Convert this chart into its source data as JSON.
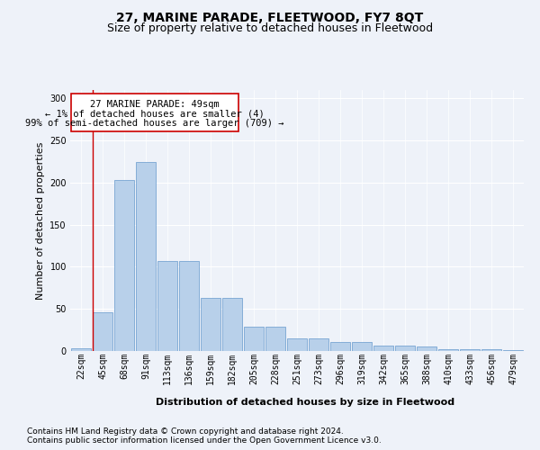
{
  "title": "27, MARINE PARADE, FLEETWOOD, FY7 8QT",
  "subtitle": "Size of property relative to detached houses in Fleetwood",
  "xlabel": "Distribution of detached houses by size in Fleetwood",
  "ylabel": "Number of detached properties",
  "bin_labels": [
    "22sqm",
    "45sqm",
    "68sqm",
    "91sqm",
    "113sqm",
    "136sqm",
    "159sqm",
    "182sqm",
    "205sqm",
    "228sqm",
    "251sqm",
    "273sqm",
    "296sqm",
    "319sqm",
    "342sqm",
    "365sqm",
    "388sqm",
    "410sqm",
    "433sqm",
    "456sqm",
    "479sqm"
  ],
  "bar_values": [
    3,
    46,
    203,
    225,
    107,
    107,
    63,
    63,
    29,
    29,
    15,
    15,
    11,
    11,
    6,
    6,
    5,
    2,
    2,
    2,
    1
  ],
  "bar_color": "#b8d0ea",
  "bar_edgecolor": "#6699cc",
  "ylim": [
    0,
    310
  ],
  "yticks": [
    0,
    50,
    100,
    150,
    200,
    250,
    300
  ],
  "annotation_line1": "27 MARINE PARADE: 49sqm",
  "annotation_line2": "← 1% of detached houses are smaller (4)",
  "annotation_line3": "99% of semi-detached houses are larger (709) →",
  "annotation_box_color": "#ffffff",
  "annotation_box_edgecolor": "#cc0000",
  "red_line_bin": 1,
  "footer_line1": "Contains HM Land Registry data © Crown copyright and database right 2024.",
  "footer_line2": "Contains public sector information licensed under the Open Government Licence v3.0.",
  "bg_color": "#eef2f9",
  "plot_bg_color": "#eef2f9",
  "grid_color": "#ffffff",
  "title_fontsize": 10,
  "subtitle_fontsize": 9,
  "axis_label_fontsize": 8,
  "tick_fontsize": 7,
  "footer_fontsize": 6.5,
  "annotation_fontsize": 7.5
}
